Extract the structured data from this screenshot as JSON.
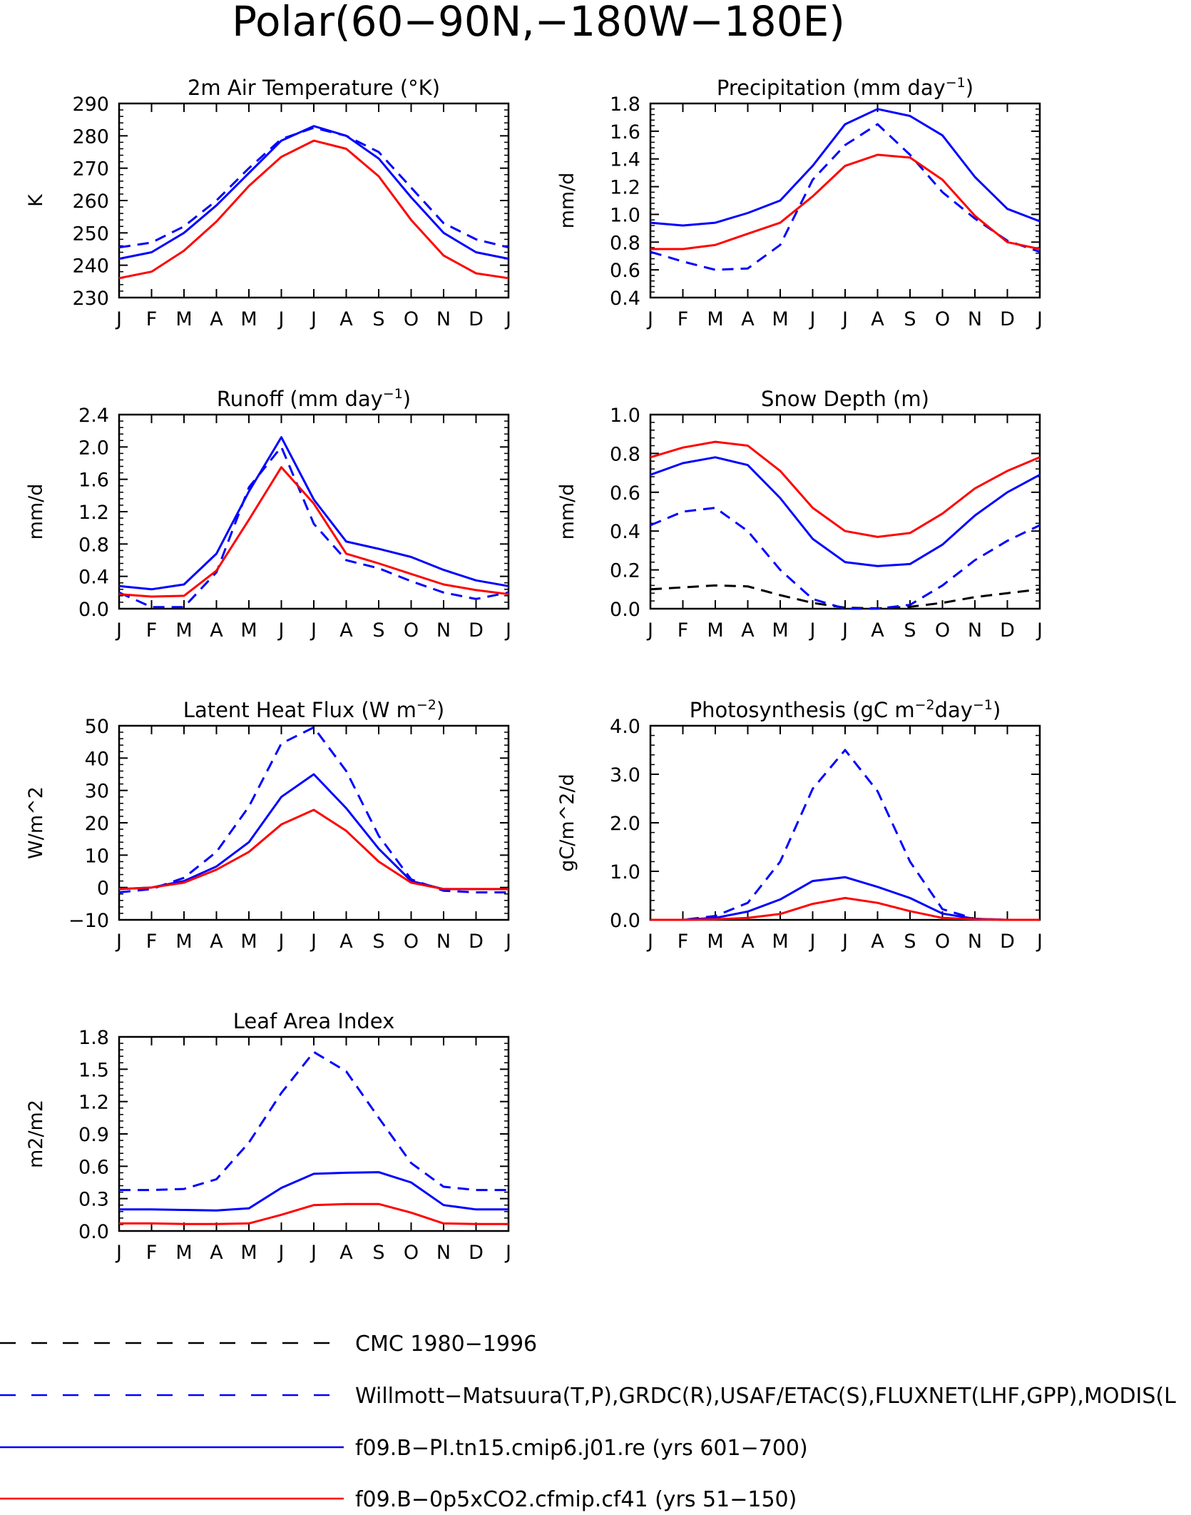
{
  "figure": {
    "title": "Polar(60−90N,−180W−180E)",
    "month_labels": [
      "J",
      "F",
      "M",
      "A",
      "M",
      "J",
      "J",
      "A",
      "S",
      "O",
      "N",
      "D",
      "J"
    ],
    "series_styles": {
      "cmc": {
        "color": "#000000",
        "dash": "dashed"
      },
      "obs": {
        "color": "#0000ff",
        "dash": "dashed"
      },
      "pi": {
        "color": "#0000ff",
        "dash": "solid"
      },
      "cfmip": {
        "color": "#ff0000",
        "dash": "solid"
      }
    }
  },
  "legend": [
    {
      "key": "cmc",
      "label": "CMC 1980−1996"
    },
    {
      "key": "obs",
      "label": "Willmott−Matsuura(T,P),GRDC(R),USAF/ETAC(S),FLUXNET(LHF,GPP),MODIS(L"
    },
    {
      "key": "pi",
      "label": "f09.B−PI.tn15.cmip6.j01.re (yrs 601−700)"
    },
    {
      "key": "cfmip",
      "label": "f09.B−0p5xCO2.cfmip.cf41 (yrs 51−150)"
    }
  ],
  "chart_data": [
    {
      "type": "line",
      "title_parts": [
        {
          "t": "2m Air Temperature (°K)"
        }
      ],
      "ylabel": "K",
      "ylim": [
        230,
        290
      ],
      "yticks": [
        "230",
        "240",
        "250",
        "260",
        "270",
        "280",
        "290"
      ],
      "series": [
        {
          "key": "obs",
          "values": [
            245.5,
            247,
            252,
            260,
            270,
            279,
            282.5,
            280,
            275,
            264,
            253,
            248,
            245.5
          ]
        },
        {
          "key": "pi",
          "values": [
            242,
            244,
            250,
            258.5,
            268.5,
            278.5,
            283,
            280,
            273,
            261,
            250,
            244,
            242
          ]
        },
        {
          "key": "cfmip",
          "values": [
            236,
            238,
            244.5,
            253.5,
            264.5,
            273.5,
            278.5,
            276,
            267.5,
            254,
            243,
            237.5,
            236
          ]
        }
      ]
    },
    {
      "type": "line",
      "title_parts": [
        {
          "t": "Precipitation (mm day"
        },
        {
          "t": "−1",
          "sup": true
        },
        {
          "t": ")"
        }
      ],
      "ylabel": "mm/d",
      "ylim": [
        0.4,
        1.8
      ],
      "yticks": [
        "0.4",
        "0.6",
        "0.8",
        "1.0",
        "1.2",
        "1.4",
        "1.6",
        "1.8"
      ],
      "series": [
        {
          "key": "obs",
          "values": [
            0.73,
            0.66,
            0.6,
            0.61,
            0.78,
            1.25,
            1.5,
            1.65,
            1.43,
            1.16,
            0.97,
            0.81,
            0.73
          ]
        },
        {
          "key": "pi",
          "values": [
            0.94,
            0.92,
            0.94,
            1.01,
            1.1,
            1.35,
            1.65,
            1.76,
            1.71,
            1.57,
            1.27,
            1.04,
            0.95
          ]
        },
        {
          "key": "cfmip",
          "values": [
            0.75,
            0.75,
            0.78,
            0.86,
            0.94,
            1.13,
            1.35,
            1.43,
            1.41,
            1.25,
            0.99,
            0.8,
            0.75
          ]
        }
      ]
    },
    {
      "type": "line",
      "title_parts": [
        {
          "t": "Runoff (mm day"
        },
        {
          "t": "−1",
          "sup": true
        },
        {
          "t": ")"
        }
      ],
      "ylabel": "mm/d",
      "ylim": [
        0,
        2.4
      ],
      "yticks": [
        "0.0",
        "0.4",
        "0.8",
        "1.2",
        "1.6",
        "2.0",
        "2.4"
      ],
      "series": [
        {
          "key": "obs",
          "values": [
            0.2,
            0.02,
            0.02,
            0.45,
            1.5,
            2.0,
            1.05,
            0.6,
            0.5,
            0.34,
            0.2,
            0.12,
            0.2
          ]
        },
        {
          "key": "pi",
          "values": [
            0.28,
            0.24,
            0.3,
            0.68,
            1.45,
            2.12,
            1.35,
            0.83,
            0.74,
            0.64,
            0.48,
            0.35,
            0.28
          ]
        },
        {
          "key": "cfmip",
          "values": [
            0.18,
            0.15,
            0.16,
            0.47,
            1.1,
            1.75,
            1.3,
            0.68,
            0.56,
            0.43,
            0.3,
            0.23,
            0.18
          ]
        }
      ]
    },
    {
      "type": "line",
      "title_parts": [
        {
          "t": "Snow Depth (m)"
        }
      ],
      "ylabel": "mm/d",
      "ylim": [
        0,
        1.0
      ],
      "yticks": [
        "0.0",
        "0.2",
        "0.4",
        "0.6",
        "0.8",
        "1.0"
      ],
      "series": [
        {
          "key": "cmc",
          "values": [
            0.1,
            0.11,
            0.12,
            0.115,
            0.07,
            0.03,
            0.005,
            0.002,
            0.01,
            0.03,
            0.06,
            0.08,
            0.1
          ]
        },
        {
          "key": "obs",
          "values": [
            0.43,
            0.5,
            0.52,
            0.4,
            0.2,
            0.05,
            0.0,
            0.0,
            0.02,
            0.12,
            0.25,
            0.35,
            0.43
          ]
        },
        {
          "key": "pi",
          "values": [
            0.69,
            0.75,
            0.78,
            0.74,
            0.57,
            0.36,
            0.24,
            0.22,
            0.23,
            0.33,
            0.48,
            0.6,
            0.69
          ]
        },
        {
          "key": "cfmip",
          "values": [
            0.78,
            0.83,
            0.86,
            0.84,
            0.71,
            0.52,
            0.4,
            0.37,
            0.39,
            0.49,
            0.62,
            0.71,
            0.78
          ]
        }
      ]
    },
    {
      "type": "line",
      "title_parts": [
        {
          "t": "Latent Heat Flux (W m"
        },
        {
          "t": "−2",
          "sup": true
        },
        {
          "t": ")"
        }
      ],
      "ylabel": "W/m^2",
      "ylim": [
        -10,
        50
      ],
      "yticks": [
        "−10",
        "0",
        "10",
        "20",
        "30",
        "40",
        "50"
      ],
      "series": [
        {
          "key": "obs",
          "values": [
            -1.5,
            -0.5,
            3,
            11,
            25,
            44.5,
            49.5,
            36,
            16,
            2.5,
            -1,
            -1.5,
            -1.5
          ]
        },
        {
          "key": "pi",
          "values": [
            -0.5,
            0,
            2,
            6.5,
            14,
            28,
            35,
            24.5,
            12,
            2,
            -0.5,
            -0.5,
            -0.5
          ]
        },
        {
          "key": "cfmip",
          "values": [
            -0.5,
            0,
            1.5,
            5.5,
            11,
            19.5,
            24,
            17.5,
            8,
            1.5,
            -0.5,
            -0.5,
            -0.5
          ]
        }
      ]
    },
    {
      "type": "line",
      "title_parts": [
        {
          "t": "Photosynthesis (gC m"
        },
        {
          "t": "−2",
          "sup": true
        },
        {
          "t": "day"
        },
        {
          "t": "−1",
          "sup": true
        },
        {
          "t": ")"
        }
      ],
      "ylabel": "gC/m^2/d",
      "ylim": [
        0,
        4.0
      ],
      "yticks": [
        "0.0",
        "1.0",
        "2.0",
        "3.0",
        "4.0"
      ],
      "series": [
        {
          "key": "obs",
          "values": [
            0,
            0,
            0.08,
            0.35,
            1.2,
            2.7,
            3.5,
            2.65,
            1.2,
            0.22,
            0.02,
            0,
            0
          ]
        },
        {
          "key": "pi",
          "values": [
            0,
            0,
            0.04,
            0.17,
            0.42,
            0.8,
            0.88,
            0.68,
            0.45,
            0.13,
            0.02,
            0,
            0
          ]
        },
        {
          "key": "cfmip",
          "values": [
            0,
            0,
            0.01,
            0.04,
            0.12,
            0.33,
            0.45,
            0.35,
            0.18,
            0.04,
            0.01,
            0,
            0
          ]
        }
      ]
    },
    {
      "type": "line",
      "title_parts": [
        {
          "t": "Leaf Area Index"
        }
      ],
      "ylabel": "m2/m2",
      "ylim": [
        0,
        1.8
      ],
      "yticks": [
        "0.0",
        "0.3",
        "0.6",
        "0.9",
        "1.2",
        "1.5",
        "1.8"
      ],
      "series": [
        {
          "key": "obs",
          "values": [
            0.38,
            0.38,
            0.39,
            0.48,
            0.82,
            1.28,
            1.66,
            1.48,
            1.05,
            0.63,
            0.41,
            0.38,
            0.38
          ]
        },
        {
          "key": "pi",
          "values": [
            0.2,
            0.2,
            0.195,
            0.19,
            0.21,
            0.4,
            0.53,
            0.54,
            0.545,
            0.45,
            0.24,
            0.2,
            0.2
          ]
        },
        {
          "key": "cfmip",
          "values": [
            0.07,
            0.07,
            0.065,
            0.065,
            0.07,
            0.15,
            0.24,
            0.25,
            0.25,
            0.17,
            0.07,
            0.065,
            0.065
          ]
        }
      ]
    }
  ]
}
